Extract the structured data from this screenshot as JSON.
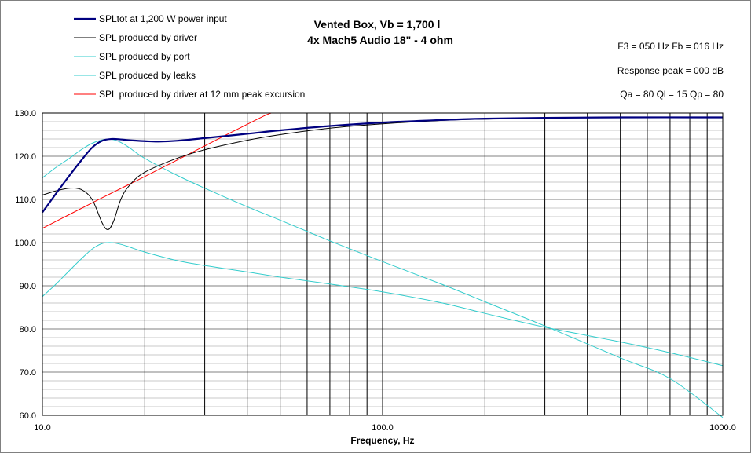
{
  "chart_data": {
    "type": "line",
    "title": "Vented Box, Vb = 1,700 l",
    "subtitle": "4x Mach5 Audio 18\" - 4 ohm",
    "xlabel": "Frequency, Hz",
    "ylabel": "",
    "xscale": "log",
    "xlim": [
      10,
      1000
    ],
    "ylim": [
      60,
      130
    ],
    "x_tick_labels": [
      "10.0",
      "100.0",
      "1000.0"
    ],
    "y_ticks": [
      60,
      70,
      80,
      90,
      100,
      110,
      120,
      130
    ],
    "y_tick_labels": [
      "60.0",
      "70.0",
      "80.0",
      "90.0",
      "100.0",
      "110.0",
      "120.0",
      "130.0"
    ],
    "grid": true,
    "legend_position": "top-left",
    "info": {
      "line1": "F3 = 050 Hz  Fb = 016 Hz",
      "line2": "Response peak = 000 dB",
      "line3": "Qa = 80  Ql = 15  Qp = 80"
    },
    "series": [
      {
        "name": "SPLtot at 1,200 W power input",
        "color": "#000080",
        "width": 2.2,
        "points": [
          [
            10,
            107
          ],
          [
            11,
            111.5
          ],
          [
            12,
            115.5
          ],
          [
            13,
            119
          ],
          [
            14,
            122
          ],
          [
            15,
            123.6
          ],
          [
            16,
            124
          ],
          [
            17,
            123.9
          ],
          [
            18,
            123.7
          ],
          [
            20,
            123.5
          ],
          [
            22,
            123.4
          ],
          [
            25,
            123.6
          ],
          [
            30,
            124.2
          ],
          [
            40,
            125.2
          ],
          [
            50,
            126
          ],
          [
            70,
            127
          ],
          [
            100,
            127.8
          ],
          [
            150,
            128.4
          ],
          [
            200,
            128.7
          ],
          [
            300,
            128.9
          ],
          [
            500,
            129
          ],
          [
            1000,
            129
          ]
        ]
      },
      {
        "name": "SPL produced by driver",
        "color": "#000000",
        "width": 1,
        "points": [
          [
            10,
            111
          ],
          [
            11,
            112
          ],
          [
            12,
            112.6
          ],
          [
            13,
            112.3
          ],
          [
            14,
            110
          ],
          [
            15,
            104.5
          ],
          [
            15.6,
            103
          ],
          [
            16.2,
            105
          ],
          [
            17,
            110
          ],
          [
            18,
            113.2
          ],
          [
            20,
            116.3
          ],
          [
            25,
            119.6
          ],
          [
            30,
            121.5
          ],
          [
            40,
            123.7
          ],
          [
            50,
            125
          ],
          [
            70,
            126.5
          ],
          [
            100,
            127.5
          ],
          [
            150,
            128.3
          ],
          [
            200,
            128.6
          ],
          [
            300,
            128.9
          ],
          [
            500,
            129
          ],
          [
            1000,
            129
          ]
        ]
      },
      {
        "name": "SPL produced by port",
        "color": "#33cccc",
        "width": 1,
        "points": [
          [
            10,
            115
          ],
          [
            11,
            117.5
          ],
          [
            12,
            119.5
          ],
          [
            13,
            121.5
          ],
          [
            14,
            123
          ],
          [
            15,
            123.8
          ],
          [
            16,
            123.9
          ],
          [
            17,
            123.2
          ],
          [
            18,
            122
          ],
          [
            20,
            119.5
          ],
          [
            25,
            115.5
          ],
          [
            30,
            112.6
          ],
          [
            40,
            108.3
          ],
          [
            50,
            105.2
          ],
          [
            70,
            100.4
          ],
          [
            100,
            95.6
          ],
          [
            150,
            90.3
          ],
          [
            200,
            86.3
          ],
          [
            300,
            80.7
          ],
          [
            500,
            73.3
          ],
          [
            700,
            68.5
          ],
          [
            1000,
            59.5
          ]
        ]
      },
      {
        "name": "SPL produced by leaks",
        "color": "#33cccc",
        "width": 1,
        "points": [
          [
            10,
            87.5
          ],
          [
            11,
            90.5
          ],
          [
            12,
            93.5
          ],
          [
            13,
            96.2
          ],
          [
            14,
            98.5
          ],
          [
            15,
            99.8
          ],
          [
            16,
            100
          ],
          [
            17,
            99.6
          ],
          [
            18,
            99
          ],
          [
            20,
            97.8
          ],
          [
            25,
            95.8
          ],
          [
            30,
            94.7
          ],
          [
            40,
            93.2
          ],
          [
            50,
            92
          ],
          [
            70,
            90.4
          ],
          [
            100,
            88.6
          ],
          [
            150,
            86
          ],
          [
            200,
            83.6
          ],
          [
            300,
            80.4
          ],
          [
            500,
            77
          ],
          [
            700,
            74.5
          ],
          [
            1000,
            71.5
          ]
        ]
      },
      {
        "name": "SPL produced by driver at 12 mm peak excursion",
        "color": "#ff0000",
        "width": 1,
        "points": [
          [
            10,
            103.3
          ],
          [
            12,
            106.5
          ],
          [
            15,
            110.4
          ],
          [
            18,
            113.5
          ],
          [
            20,
            115.3
          ],
          [
            25,
            119.2
          ],
          [
            30,
            122.4
          ],
          [
            35,
            125.1
          ],
          [
            40,
            127.4
          ],
          [
            45,
            129.4
          ],
          [
            47,
            130
          ]
        ]
      }
    ]
  }
}
